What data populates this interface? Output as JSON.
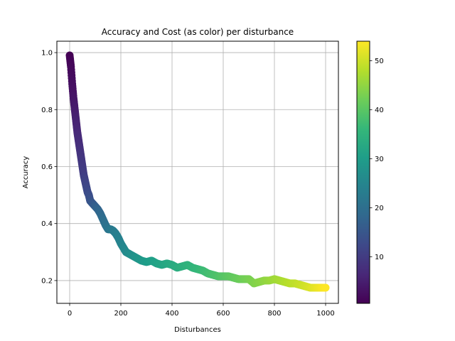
{
  "chart_data": {
    "type": "scatter",
    "title": "Accuracy and Cost (as color) per disturbance",
    "xlabel": "Disturbances",
    "ylabel": "Accuracy",
    "xlim": [
      -50,
      1050
    ],
    "ylim": [
      0.12,
      1.04
    ],
    "xticks": [
      0,
      200,
      400,
      600,
      800,
      1000
    ],
    "yticks": [
      0.2,
      0.4,
      0.6,
      0.8,
      1.0
    ],
    "xtick_labels": [
      "0",
      "200",
      "400",
      "600",
      "800",
      "1000"
    ],
    "ytick_labels": [
      "0.2",
      "0.4",
      "0.6",
      "0.8",
      "1.0"
    ],
    "grid": true,
    "colormap": "viridis",
    "colorbar": {
      "range": [
        0.5,
        54
      ],
      "ticks": [
        10,
        20,
        30,
        40,
        50
      ],
      "tick_labels": [
        "10",
        "20",
        "30",
        "40",
        "50"
      ]
    },
    "series": [
      {
        "x": [
          0,
          5,
          10,
          15,
          20,
          25,
          30,
          35,
          40,
          45,
          50,
          55,
          60,
          65,
          70,
          75,
          80,
          85,
          90,
          95,
          100,
          110,
          120,
          130,
          140,
          150,
          160,
          170,
          180,
          190,
          200,
          210,
          220,
          240,
          260,
          280,
          300,
          320,
          340,
          360,
          380,
          400,
          420,
          440,
          460,
          480,
          500,
          520,
          540,
          560,
          580,
          600,
          620,
          640,
          660,
          680,
          700,
          720,
          740,
          760,
          780,
          800,
          820,
          840,
          860,
          880,
          900,
          920,
          940,
          960,
          980,
          1000
        ],
        "y": [
          0.99,
          0.95,
          0.89,
          0.84,
          0.8,
          0.76,
          0.72,
          0.69,
          0.66,
          0.63,
          0.6,
          0.57,
          0.55,
          0.53,
          0.51,
          0.5,
          0.48,
          0.475,
          0.47,
          0.465,
          0.46,
          0.45,
          0.435,
          0.415,
          0.395,
          0.38,
          0.38,
          0.375,
          0.365,
          0.35,
          0.33,
          0.315,
          0.3,
          0.29,
          0.28,
          0.27,
          0.265,
          0.27,
          0.26,
          0.255,
          0.26,
          0.255,
          0.245,
          0.25,
          0.255,
          0.245,
          0.24,
          0.235,
          0.225,
          0.22,
          0.215,
          0.215,
          0.215,
          0.21,
          0.205,
          0.205,
          0.205,
          0.19,
          0.195,
          0.2,
          0.2,
          0.205,
          0.2,
          0.195,
          0.19,
          0.19,
          0.185,
          0.18,
          0.175,
          0.175,
          0.175,
          0.175
        ],
        "c": [
          0.5,
          1.5,
          2.5,
          3.5,
          4.5,
          5.5,
          6.5,
          7.2,
          8,
          8.8,
          9.5,
          10.2,
          11,
          11.8,
          12.5,
          13.2,
          14,
          14.6,
          15.2,
          15.8,
          16.5,
          17.5,
          18.5,
          19.5,
          20.5,
          21.2,
          22,
          22.6,
          23.2,
          23.8,
          24.5,
          25.2,
          25.8,
          27,
          28,
          29,
          29.8,
          30.5,
          31.2,
          31.8,
          32.4,
          33,
          33.6,
          34.2,
          34.8,
          35.4,
          36,
          36.8,
          37.5,
          38.2,
          38.8,
          39.5,
          40.2,
          40.8,
          41.5,
          42.2,
          42.8,
          43.5,
          44.2,
          44.8,
          45.5,
          46.2,
          46.8,
          47.5,
          48.2,
          48.8,
          49.5,
          50.2,
          51,
          52,
          53,
          54
        ]
      }
    ]
  }
}
